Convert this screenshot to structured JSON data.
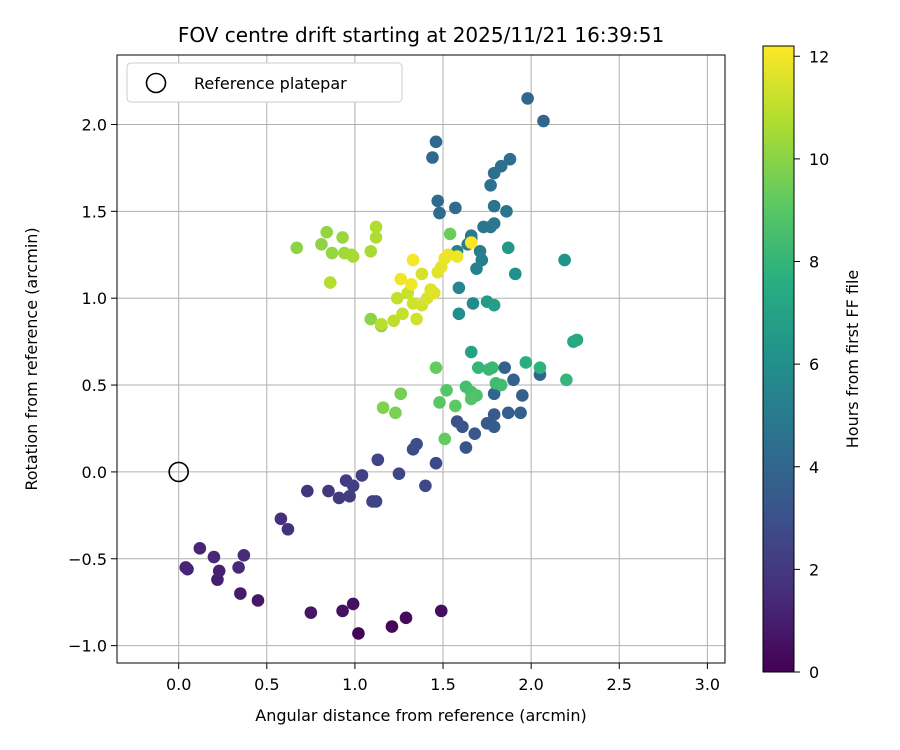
{
  "chart_data": {
    "type": "scatter",
    "title": "FOV centre drift starting at 2025/11/21 16:39:51",
    "xlabel": "Angular distance from reference (arcmin)",
    "ylabel": "Rotation from reference (arcmin)",
    "xlim": [
      -0.35,
      3.1
    ],
    "ylim": [
      -1.1,
      2.4
    ],
    "xticks": [
      0.0,
      0.5,
      1.0,
      1.5,
      2.0,
      2.5,
      3.0
    ],
    "xtick_labels": [
      "0.0",
      "0.5",
      "1.0",
      "1.5",
      "2.0",
      "2.5",
      "3.0"
    ],
    "yticks": [
      -1.0,
      -0.5,
      0.0,
      0.5,
      1.0,
      1.5,
      2.0
    ],
    "ytick_labels": [
      "−1.0",
      "−0.5",
      "0.0",
      "0.5",
      "1.0",
      "1.5",
      "2.0"
    ],
    "grid": true,
    "colormap": "viridis",
    "colorbar": {
      "label": "Hours from first FF file",
      "range": [
        0,
        12.2
      ],
      "ticks": [
        0,
        2,
        4,
        6,
        8,
        10,
        12
      ],
      "tick_labels": [
        "0",
        "2",
        "4",
        "6",
        "8",
        "10",
        "12"
      ]
    },
    "legend": {
      "position": "top-left",
      "label": "Reference platepar"
    },
    "reference_point": {
      "x": 0.0,
      "y": 0.0
    },
    "points": [
      [
        1.02,
        -0.93,
        0.1
      ],
      [
        1.21,
        -0.89,
        0.2
      ],
      [
        1.29,
        -0.84,
        0.3
      ],
      [
        1.49,
        -0.8,
        0.4
      ],
      [
        0.99,
        -0.76,
        0.5
      ],
      [
        0.93,
        -0.8,
        0.6
      ],
      [
        0.75,
        -0.81,
        0.7
      ],
      [
        0.45,
        -0.74,
        0.8
      ],
      [
        0.35,
        -0.7,
        0.9
      ],
      [
        0.22,
        -0.62,
        1.0
      ],
      [
        0.23,
        -0.57,
        1.1
      ],
      [
        0.04,
        -0.55,
        1.2
      ],
      [
        0.05,
        -0.56,
        1.25
      ],
      [
        0.12,
        -0.44,
        1.3
      ],
      [
        0.2,
        -0.49,
        1.4
      ],
      [
        0.34,
        -0.55,
        1.45
      ],
      [
        0.37,
        -0.48,
        1.5
      ],
      [
        0.58,
        -0.27,
        1.6
      ],
      [
        0.62,
        -0.33,
        1.7
      ],
      [
        0.73,
        -0.11,
        1.8
      ],
      [
        0.85,
        -0.11,
        1.9
      ],
      [
        0.91,
        -0.15,
        2.0
      ],
      [
        0.95,
        -0.05,
        2.1
      ],
      [
        0.97,
        -0.14,
        2.2
      ],
      [
        0.99,
        -0.08,
        2.25
      ],
      [
        1.04,
        -0.02,
        2.3
      ],
      [
        1.1,
        -0.17,
        2.4
      ],
      [
        1.12,
        -0.17,
        2.45
      ],
      [
        1.13,
        0.07,
        2.5
      ],
      [
        1.25,
        -0.01,
        2.55
      ],
      [
        1.4,
        -0.08,
        2.6
      ],
      [
        1.46,
        0.05,
        2.7
      ],
      [
        1.33,
        0.13,
        2.8
      ],
      [
        1.35,
        0.16,
        2.9
      ],
      [
        1.58,
        0.29,
        3.0
      ],
      [
        1.63,
        0.14,
        3.1
      ],
      [
        1.61,
        0.26,
        3.2
      ],
      [
        1.68,
        0.22,
        3.3
      ],
      [
        1.75,
        0.28,
        3.4
      ],
      [
        1.79,
        0.33,
        3.5
      ],
      [
        1.79,
        0.26,
        3.55
      ],
      [
        1.87,
        0.34,
        3.6
      ],
      [
        1.94,
        0.34,
        3.7
      ],
      [
        1.95,
        0.44,
        3.75
      ],
      [
        1.9,
        0.53,
        3.8
      ],
      [
        1.85,
        0.6,
        3.85
      ],
      [
        2.05,
        0.56,
        3.9
      ],
      [
        1.79,
        0.45,
        3.95
      ],
      [
        1.98,
        2.15,
        4.0
      ],
      [
        2.07,
        2.02,
        4.05
      ],
      [
        1.44,
        1.81,
        4.1
      ],
      [
        1.46,
        1.9,
        4.15
      ],
      [
        1.47,
        1.56,
        4.2
      ],
      [
        1.48,
        1.49,
        4.25
      ],
      [
        1.57,
        1.52,
        4.3
      ],
      [
        1.88,
        1.8,
        4.4
      ],
      [
        1.83,
        1.76,
        4.45
      ],
      [
        1.79,
        1.72,
        4.5
      ],
      [
        1.77,
        1.65,
        4.55
      ],
      [
        1.79,
        1.53,
        4.6
      ],
      [
        1.86,
        1.5,
        4.65
      ],
      [
        1.73,
        1.41,
        4.7
      ],
      [
        1.77,
        1.41,
        4.75
      ],
      [
        1.79,
        1.43,
        4.8
      ],
      [
        1.66,
        1.36,
        4.9
      ],
      [
        1.64,
        1.31,
        5.0
      ],
      [
        1.66,
        1.34,
        5.05
      ],
      [
        1.71,
        1.27,
        5.1
      ],
      [
        1.72,
        1.22,
        5.2
      ],
      [
        1.69,
        1.17,
        5.3
      ],
      [
        1.58,
        1.27,
        5.4
      ],
      [
        1.59,
        1.06,
        5.6
      ],
      [
        1.67,
        0.97,
        5.8
      ],
      [
        1.59,
        0.91,
        6.0
      ],
      [
        1.91,
        1.14,
        6.1
      ],
      [
        2.19,
        1.22,
        6.2
      ],
      [
        1.87,
        1.29,
        6.4
      ],
      [
        1.75,
        0.98,
        6.6
      ],
      [
        1.79,
        0.96,
        6.8
      ],
      [
        1.66,
        0.69,
        7.0
      ],
      [
        2.24,
        0.75,
        7.2
      ],
      [
        2.26,
        0.76,
        7.4
      ],
      [
        1.97,
        0.63,
        7.6
      ],
      [
        2.05,
        0.6,
        7.8
      ],
      [
        2.2,
        0.53,
        8.0
      ],
      [
        1.7,
        0.6,
        8.0
      ],
      [
        1.76,
        0.59,
        8.1
      ],
      [
        1.78,
        0.6,
        8.2
      ],
      [
        1.8,
        0.51,
        8.3
      ],
      [
        1.83,
        0.5,
        8.4
      ],
      [
        1.63,
        0.49,
        8.5
      ],
      [
        1.66,
        0.46,
        8.6
      ],
      [
        1.69,
        0.44,
        8.7
      ],
      [
        1.66,
        0.42,
        8.8
      ],
      [
        1.52,
        0.47,
        8.9
      ],
      [
        1.48,
        0.4,
        9.0
      ],
      [
        1.57,
        0.38,
        9.1
      ],
      [
        1.51,
        0.19,
        9.2
      ],
      [
        1.46,
        0.6,
        9.3
      ],
      [
        1.54,
        1.37,
        9.4
      ],
      [
        1.26,
        0.45,
        9.6
      ],
      [
        1.23,
        0.34,
        9.7
      ],
      [
        1.16,
        0.37,
        9.8
      ],
      [
        1.15,
        0.84,
        9.9
      ],
      [
        1.09,
        0.88,
        10.0
      ],
      [
        0.67,
        1.29,
        10.0
      ],
      [
        0.81,
        1.31,
        10.1
      ],
      [
        0.84,
        1.38,
        10.15
      ],
      [
        0.87,
        1.26,
        10.2
      ],
      [
        0.93,
        1.35,
        10.3
      ],
      [
        0.94,
        1.26,
        10.4
      ],
      [
        0.98,
        1.25,
        10.5
      ],
      [
        0.99,
        1.24,
        10.55
      ],
      [
        1.09,
        1.27,
        10.6
      ],
      [
        1.12,
        1.35,
        10.7
      ],
      [
        1.12,
        1.41,
        10.75
      ],
      [
        0.86,
        1.09,
        10.8
      ],
      [
        1.15,
        0.85,
        10.9
      ],
      [
        1.22,
        0.87,
        11.0
      ],
      [
        1.24,
        1.0,
        11.1
      ],
      [
        1.27,
        0.91,
        11.15
      ],
      [
        1.3,
        1.03,
        11.2
      ],
      [
        1.33,
        0.97,
        11.3
      ],
      [
        1.35,
        0.88,
        11.35
      ],
      [
        1.38,
        0.96,
        11.4
      ],
      [
        1.38,
        1.14,
        11.45
      ],
      [
        1.41,
        1.0,
        11.5
      ],
      [
        1.43,
        1.05,
        11.6
      ],
      [
        1.45,
        1.03,
        11.65
      ],
      [
        1.47,
        1.15,
        11.7
      ],
      [
        1.49,
        1.18,
        11.75
      ],
      [
        1.51,
        1.23,
        11.8
      ],
      [
        1.53,
        1.25,
        11.85
      ],
      [
        1.58,
        1.24,
        11.9
      ],
      [
        1.26,
        1.11,
        11.95
      ],
      [
        1.32,
        1.08,
        12.0
      ],
      [
        1.33,
        1.22,
        12.05
      ],
      [
        1.66,
        1.32,
        12.2
      ]
    ]
  }
}
